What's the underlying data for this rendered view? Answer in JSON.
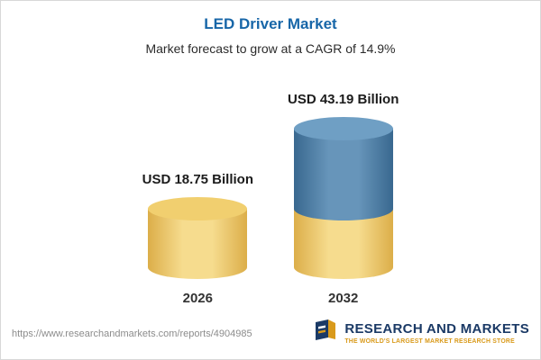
{
  "header": {
    "title": "LED Driver Market",
    "subtitle": "Market forecast to grow at a CAGR of 14.9%"
  },
  "chart_data": {
    "type": "bar",
    "style": "3d-cylinder; 2032 bar stacked: base segment equal to 2026 value, growth segment on top",
    "categories": [
      "2026",
      "2032"
    ],
    "values": [
      18.75,
      43.19
    ],
    "value_labels": [
      "USD 18.75 Billion",
      "USD 43.19 Billion"
    ],
    "unit": "USD Billion",
    "title": "LED Driver Market",
    "subtitle": "Market forecast to grow at a CAGR of 14.9%",
    "cagr": "14.9%",
    "ylim": [
      0,
      45
    ],
    "grid": false,
    "legend": false,
    "colors": {
      "base_segment": "#f0cf6e",
      "growth_segment": "#4a7ba6",
      "title": "#1766a8"
    }
  },
  "footer": {
    "url": "https://www.researchandmarkets.com/reports/4904985",
    "logo": {
      "name": "RESEARCH AND MARKETS",
      "tagline": "THE WORLD'S LARGEST MARKET RESEARCH STORE",
      "navy": "#1b3a66",
      "gold": "#d99a1b"
    }
  }
}
